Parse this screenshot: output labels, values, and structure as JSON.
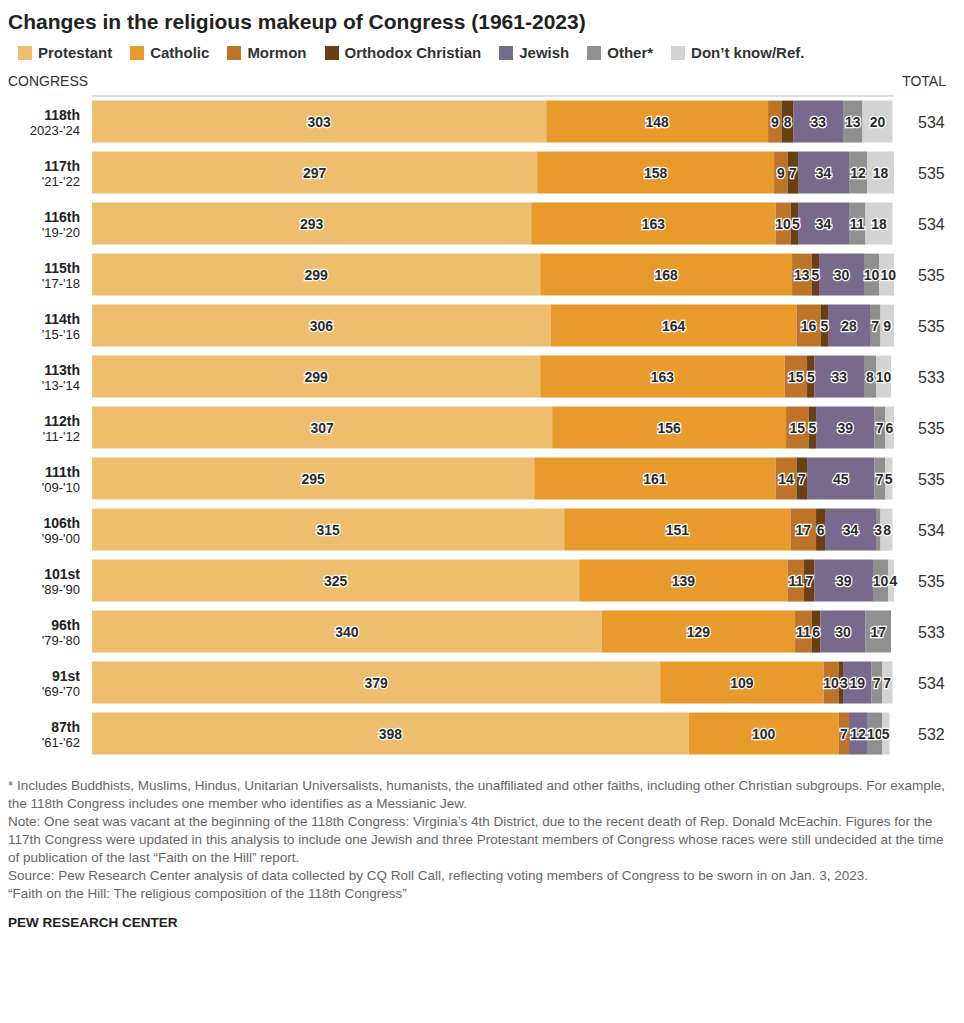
{
  "chart_data": {
    "type": "bar",
    "orientation": "horizontal",
    "stacked": true,
    "data_labels": true,
    "tick_labels": "y",
    "title": "Changes in the religious makeup of Congress (1961-2023)",
    "category_label": "CONGRESS",
    "total_label": "TOTAL",
    "categories": [
      "118th",
      "117th",
      "116th",
      "115th",
      "114th",
      "113th",
      "112th",
      "111th",
      "106th",
      "101st",
      "96th",
      "91st",
      "87th"
    ],
    "category_years": [
      "2023-'24",
      "'21-'22",
      "'19-'20",
      "'17-'18",
      "'15-'16",
      "'13-'14",
      "'11-'12",
      "'09-'10",
      "'99-'00",
      "'89-'90",
      "'79-'80",
      "'69-'70",
      "'61-'62"
    ],
    "totals": [
      534,
      535,
      534,
      535,
      535,
      533,
      535,
      535,
      534,
      535,
      533,
      534,
      532
    ],
    "xlim": [
      0,
      535
    ],
    "xticks": [],
    "series": [
      {
        "name": "Protestant",
        "color": "#EDBE6E",
        "values": [
          303,
          297,
          293,
          299,
          306,
          299,
          307,
          295,
          315,
          325,
          340,
          379,
          398
        ]
      },
      {
        "name": "Catholic",
        "color": "#E99A2C",
        "values": [
          148,
          158,
          163,
          168,
          164,
          163,
          156,
          161,
          151,
          139,
          129,
          109,
          100
        ]
      },
      {
        "name": "Mormon",
        "color": "#BD7428",
        "values": [
          9,
          9,
          10,
          13,
          16,
          15,
          15,
          14,
          17,
          11,
          11,
          10,
          7
        ]
      },
      {
        "name": "Orthodox Christian",
        "color": "#6A3F14",
        "values": [
          8,
          7,
          5,
          5,
          5,
          5,
          5,
          7,
          6,
          7,
          6,
          3,
          null
        ]
      },
      {
        "name": "Jewish",
        "color": "#776A8C",
        "values": [
          33,
          34,
          34,
          30,
          28,
          33,
          39,
          45,
          34,
          39,
          30,
          19,
          12
        ]
      },
      {
        "name": "Other*",
        "color": "#8F8F8F",
        "values": [
          13,
          12,
          11,
          10,
          7,
          8,
          7,
          7,
          3,
          10,
          17,
          7,
          10
        ]
      },
      {
        "name": "Don’t know/Ref.",
        "color": "#D3D3D3",
        "values": [
          20,
          18,
          18,
          10,
          9,
          10,
          6,
          5,
          8,
          4,
          null,
          7,
          5
        ]
      }
    ],
    "notes": [
      "* Includes Buddhists, Muslims, Hindus, Unitarian Universalists, humanists, the unaffiliated and other faiths, including other Christian subgroups. For example, the 118th Congress includes one member who identifies as a Messianic Jew.",
      "Note: One seat was vacant at the beginning of the 118th Congress: Virginia’s 4th District, due to the recent death of Rep. Donald McEachin. Figures for the 117th Congress were updated in this analysis to include one Jewish and three Protestant members of Congress whose races were still undecided at the time of publication of the last “Faith on the Hill” report.",
      "Source: Pew Research Center analysis of data collected by CQ Roll Call, reflecting voting members of Congress to be sworn in on Jan. 3, 2023.",
      "“Faith on the Hill: The religious composition of the 118th Congress”"
    ],
    "credit": "PEW RESEARCH CENTER"
  }
}
